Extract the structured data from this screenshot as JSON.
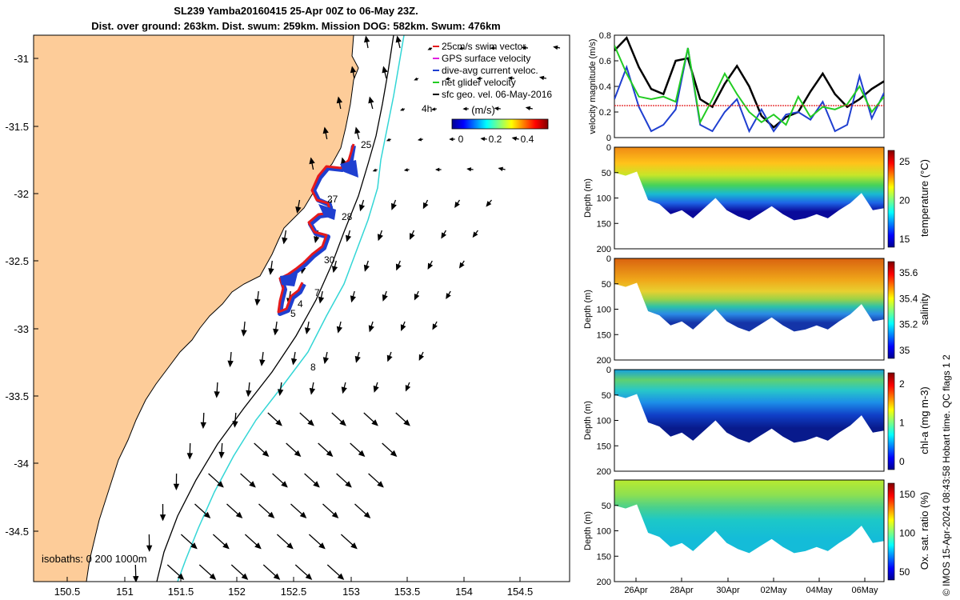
{
  "title": {
    "line1": "SL239 Yamba20160415 25-Apr 00Z to 06-May 23Z.",
    "line2": "Dist. over ground: 263km. Dist. swum: 259km. Mission DOG: 582km. Swum: 476km"
  },
  "map": {
    "x_ticks": [
      "150.5",
      "151",
      "151.5",
      "152",
      "152.5",
      "153",
      "153.5",
      "154",
      "154.5"
    ],
    "y_ticks": [
      "-31",
      "-31.5",
      "-32",
      "-32.5",
      "-33",
      "-33.5",
      "-34",
      "-34.5"
    ],
    "legend": [
      {
        "label": "25cm/s swim vector",
        "color": "#e41a1c"
      },
      {
        "label": "GPS surface velocity",
        "color": "#e020e0"
      },
      {
        "label": "dive-avg current veloc.",
        "color": "#1f3fd0"
      },
      {
        "label": "net glider velocity",
        "color": "#22cc22"
      },
      {
        "label": "sfc geo. vel. 06-May-2016",
        "color": "#000000"
      }
    ],
    "colorbar_unit": "(m/s)",
    "colorbar_ticks": [
      "0",
      "0.2",
      "0.4"
    ],
    "time_label": "4h",
    "day_labels": [
      "25",
      "27",
      "28",
      "30",
      "7",
      "4",
      "5",
      "8"
    ],
    "isobaths_label": "isobaths: 0   200  1000m",
    "colors": {
      "land": "#fdcc99",
      "isobath_200": "#000000",
      "isobath_1000": "#33d6d6",
      "track": "#e41a1c",
      "current": "#1f3fd0"
    }
  },
  "velocity_panel": {
    "ylabel": "velocity magnitude (m/s)",
    "y_ticks": [
      "0",
      "0.2",
      "0.4",
      "0.6",
      "0.8"
    ]
  },
  "profile_panels": [
    {
      "ylabel": "Depth (m)",
      "y_ticks": [
        "0",
        "50",
        "100",
        "150",
        "200"
      ],
      "cbar_label": "temperature (°C)",
      "cbar_ticks": [
        "25",
        "20",
        "15"
      ]
    },
    {
      "ylabel": "Depth (m)",
      "y_ticks": [
        "0",
        "50",
        "100",
        "150",
        "200"
      ],
      "cbar_label": "salinity",
      "cbar_ticks": [
        "35.6",
        "35.4",
        "35.2",
        "35"
      ]
    },
    {
      "ylabel": "Depth (m)",
      "y_ticks": [
        "0",
        "50",
        "100",
        "150",
        "200"
      ],
      "cbar_label": "chl-a (mg m-3)",
      "cbar_ticks": [
        "2",
        "1",
        "0"
      ]
    },
    {
      "ylabel": "Depth (m)",
      "y_ticks": [
        "50",
        "100",
        "150",
        "200"
      ],
      "cbar_label": "Ox. sat. ratio (%)",
      "cbar_ticks": [
        "150",
        "100",
        "50"
      ]
    }
  ],
  "time_axis": {
    "ticks": [
      "26Apr",
      "28Apr",
      "30Apr",
      "02May",
      "04May",
      "06May"
    ]
  },
  "side_note": "© IMOS 15-Apr-2024 08:43:58 Hobart time. QC flags 1  2",
  "chart_data": [
    {
      "type": "line",
      "title": "",
      "ylabel": "velocity magnitude (m/s)",
      "ylim": [
        0,
        0.8
      ],
      "x_ticks": [
        "26Apr",
        "28Apr",
        "30Apr",
        "02May",
        "04May",
        "06May"
      ],
      "series": [
        {
          "name": "sfc geo. vel.",
          "color": "#000000",
          "values": [
            0.68,
            0.78,
            0.55,
            0.38,
            0.34,
            0.6,
            0.62,
            0.3,
            0.24,
            0.42,
            0.56,
            0.4,
            0.17,
            0.08,
            0.16,
            0.2,
            0.36,
            0.5,
            0.34,
            0.24,
            0.3,
            0.38,
            0.44
          ]
        },
        {
          "name": "dive-avg current veloc.",
          "color": "#1f3fd0",
          "values": [
            0.3,
            0.55,
            0.24,
            0.05,
            0.1,
            0.22,
            0.7,
            0.1,
            0.05,
            0.2,
            0.3,
            0.05,
            0.22,
            0.05,
            0.18,
            0.2,
            0.14,
            0.28,
            0.05,
            0.1,
            0.48,
            0.15,
            0.35
          ]
        },
        {
          "name": "net glider velocity",
          "color": "#22cc22",
          "values": [
            0.72,
            0.5,
            0.32,
            0.3,
            0.32,
            0.28,
            0.7,
            0.12,
            0.3,
            0.5,
            0.34,
            0.2,
            0.12,
            0.18,
            0.1,
            0.32,
            0.16,
            0.24,
            0.22,
            0.26,
            0.4,
            0.2,
            0.32
          ]
        },
        {
          "name": "25cm/s swim vector",
          "color": "#e41a1c",
          "values": [
            0.25,
            0.25,
            0.25,
            0.25,
            0.25,
            0.25,
            0.25,
            0.25,
            0.25,
            0.25,
            0.25,
            0.25,
            0.25,
            0.25,
            0.25,
            0.25,
            0.25,
            0.25,
            0.25,
            0.25,
            0.25,
            0.25,
            0.25
          ]
        }
      ]
    }
  ]
}
